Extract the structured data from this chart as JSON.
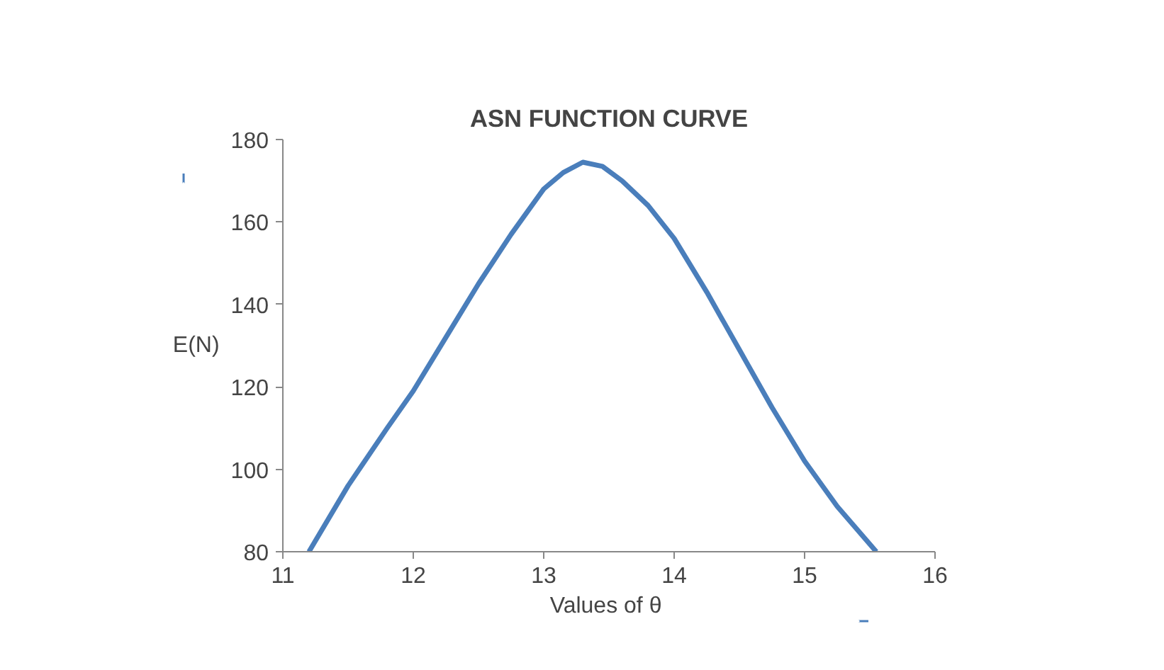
{
  "chart_data": {
    "type": "line",
    "title": "ASN FUNCTION CURVE",
    "xlabel": "Values of  θ",
    "ylabel": "E(N)",
    "x": [
      11.2,
      11.5,
      11.8,
      12,
      12.25,
      12.5,
      12.75,
      13,
      13.15,
      13.3,
      13.45,
      13.6,
      13.8,
      14,
      14.25,
      14.5,
      14.75,
      15,
      15.25,
      15.55
    ],
    "series": [
      {
        "color": "#4a7ebb",
        "values": [
          80,
          96,
          110,
          119,
          132,
          145,
          157,
          168,
          172,
          174.5,
          173.5,
          170,
          164,
          156,
          143,
          129,
          115,
          102,
          91,
          80
        ]
      }
    ],
    "xlim": [
      11,
      16
    ],
    "xticks": [
      11,
      12,
      13,
      14,
      15,
      16
    ],
    "ylim": [
      80,
      180
    ],
    "yticks": [
      80,
      100,
      120,
      140,
      160,
      180
    ],
    "grid": false,
    "marker": "none",
    "line_style": "solid"
  }
}
